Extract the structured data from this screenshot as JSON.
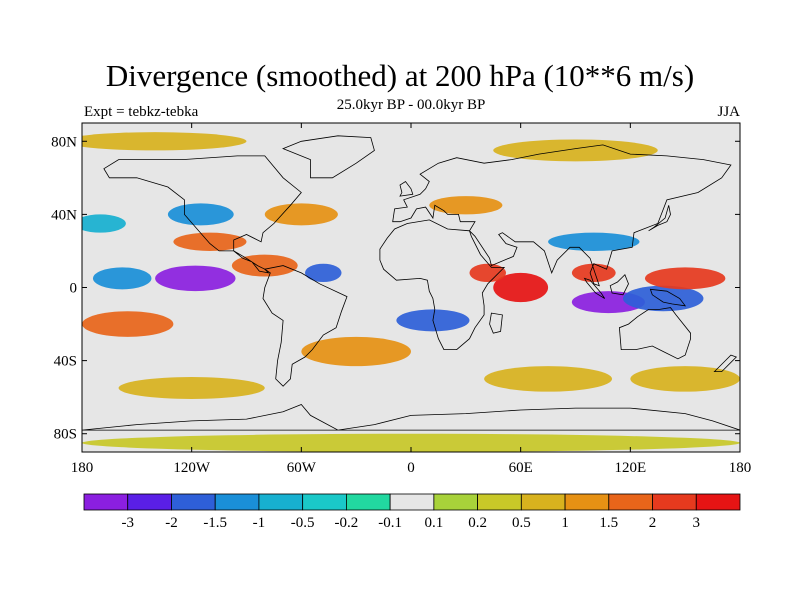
{
  "header": {
    "title": "Divergence (smoothed) at 200 hPa (10**6 m/s)",
    "subtitle": "25.0kyr BP - 00.0kyr BP",
    "left_label": "Expt = tebkz-tebka",
    "right_label": "JJA"
  },
  "chart_data": {
    "type": "heatmap",
    "title": "Divergence (smoothed) at 200 hPa (10**6 m/s)",
    "variable": "Divergence difference (smoothed), 200 hPa",
    "units": "10**6 m/s",
    "season": "JJA",
    "projection": "cylindrical equidistant, 180 to 180",
    "xlim": [
      -180,
      180
    ],
    "ylim": [
      -90,
      90
    ],
    "x_ticks": [
      {
        "value": -180,
        "label": "180"
      },
      {
        "value": -120,
        "label": "120W"
      },
      {
        "value": -60,
        "label": "60W"
      },
      {
        "value": 0,
        "label": "0"
      },
      {
        "value": 60,
        "label": "60E"
      },
      {
        "value": 120,
        "label": "120E"
      },
      {
        "value": 180,
        "label": "180"
      }
    ],
    "y_ticks": [
      {
        "value": 80,
        "label": "80N"
      },
      {
        "value": 40,
        "label": "40N"
      },
      {
        "value": 0,
        "label": "0"
      },
      {
        "value": -40,
        "label": "40S"
      },
      {
        "value": -80,
        "label": "80S"
      }
    ],
    "colorbar": {
      "colors": [
        "#8b1fe0",
        "#5a1fe6",
        "#2e5fd8",
        "#1a8fd8",
        "#17b0d0",
        "#1ac8c8",
        "#22d8a0",
        "#e6e6e6",
        "#a8d23a",
        "#c8c828",
        "#d8b21e",
        "#e69114",
        "#e8651a",
        "#e63a1e",
        "#e61414"
      ],
      "labels": [
        "-3",
        "-2",
        "-1.5",
        "-1",
        "-0.5",
        "-0.2",
        "-0.1",
        "0.1",
        "0.2",
        "0.5",
        "1",
        "1.5",
        "2",
        "3"
      ]
    },
    "features": [
      {
        "type": "ellipse",
        "lon": -118,
        "lat": 5,
        "rlon": 22,
        "rlat": 7,
        "value": -3.2
      },
      {
        "type": "ellipse",
        "lon": -158,
        "lat": 5,
        "rlon": 16,
        "rlat": 6,
        "value": -1.2
      },
      {
        "type": "ellipse",
        "lon": 108,
        "lat": -8,
        "rlon": 20,
        "rlat": 6,
        "value": -3.2
      },
      {
        "type": "ellipse",
        "lon": 138,
        "lat": -6,
        "rlon": 22,
        "rlat": 7,
        "value": -2.0
      },
      {
        "type": "ellipse",
        "lon": -48,
        "lat": 8,
        "rlon": 10,
        "rlat": 5,
        "value": -2.0
      },
      {
        "type": "ellipse",
        "lon": 12,
        "lat": -18,
        "rlon": 20,
        "rlat": 6,
        "value": -1.6
      },
      {
        "type": "ellipse",
        "lon": -115,
        "lat": 40,
        "rlon": 18,
        "rlat": 6,
        "value": -1.5
      },
      {
        "type": "ellipse",
        "lon": -170,
        "lat": 35,
        "rlon": 14,
        "rlat": 5,
        "value": -0.8
      },
      {
        "type": "ellipse",
        "lon": 100,
        "lat": 25,
        "rlon": 25,
        "rlat": 5,
        "value": -1.2
      },
      {
        "type": "ellipse",
        "lon": 60,
        "lat": 0,
        "rlon": 15,
        "rlat": 8,
        "value": 3.2
      },
      {
        "type": "ellipse",
        "lon": 42,
        "lat": 8,
        "rlon": 10,
        "rlat": 5,
        "value": 2.5
      },
      {
        "type": "ellipse",
        "lon": 100,
        "lat": 8,
        "rlon": 12,
        "rlat": 5,
        "value": 2.5
      },
      {
        "type": "ellipse",
        "lon": 150,
        "lat": 5,
        "rlon": 22,
        "rlat": 6,
        "value": 2.0
      },
      {
        "type": "ellipse",
        "lon": -80,
        "lat": 12,
        "rlon": 18,
        "rlat": 6,
        "value": 1.8
      },
      {
        "type": "ellipse",
        "lon": -155,
        "lat": -20,
        "rlon": 25,
        "rlat": 7,
        "value": 1.6
      },
      {
        "type": "ellipse",
        "lon": -110,
        "lat": 25,
        "rlon": 20,
        "rlat": 5,
        "value": 1.5
      },
      {
        "type": "ellipse",
        "lon": -60,
        "lat": 40,
        "rlon": 20,
        "rlat": 6,
        "value": 1.2
      },
      {
        "type": "ellipse",
        "lon": 30,
        "lat": 45,
        "rlon": 20,
        "rlat": 5,
        "value": 1.0
      },
      {
        "type": "ellipse",
        "lon": -30,
        "lat": -35,
        "rlon": 30,
        "rlat": 8,
        "value": 1.2
      },
      {
        "type": "ellipse",
        "lon": 75,
        "lat": -50,
        "rlon": 35,
        "rlat": 7,
        "value": 0.8
      },
      {
        "type": "ellipse",
        "lon": 150,
        "lat": -50,
        "rlon": 30,
        "rlat": 7,
        "value": 0.8
      },
      {
        "type": "ellipse",
        "lon": -120,
        "lat": -55,
        "rlon": 40,
        "rlat": 6,
        "value": 0.6
      },
      {
        "type": "ellipse",
        "lon": 0,
        "lat": -85,
        "rlon": 180,
        "rlat": 5,
        "value": 0.4
      },
      {
        "type": "ellipse",
        "lon": -140,
        "lat": 80,
        "rlon": 50,
        "rlat": 5,
        "value": 0.8
      },
      {
        "type": "ellipse",
        "lon": 90,
        "lat": 75,
        "rlon": 45,
        "rlat": 6,
        "value": 0.6
      }
    ],
    "land_outlines": [
      {
        "name": "North America",
        "points": [
          [
            -168,
            65
          ],
          [
            -160,
            70
          ],
          [
            -140,
            70
          ],
          [
            -125,
            70
          ],
          [
            -95,
            72
          ],
          [
            -80,
            72
          ],
          [
            -70,
            60
          ],
          [
            -60,
            52
          ],
          [
            -66,
            45
          ],
          [
            -75,
            35
          ],
          [
            -81,
            30
          ],
          [
            -82,
            25
          ],
          [
            -90,
            29
          ],
          [
            -97,
            26
          ],
          [
            -97,
            20
          ],
          [
            -105,
            20
          ],
          [
            -110,
            24
          ],
          [
            -117,
            32
          ],
          [
            -124,
            40
          ],
          [
            -124,
            48
          ],
          [
            -133,
            55
          ],
          [
            -150,
            60
          ],
          [
            -165,
            60
          ]
        ]
      },
      {
        "name": "Central America",
        "points": [
          [
            -97,
            20
          ],
          [
            -92,
            16
          ],
          [
            -87,
            14
          ],
          [
            -83,
            9
          ],
          [
            -78,
            8
          ],
          [
            -80,
            10
          ],
          [
            -84,
            12
          ],
          [
            -90,
            16
          ],
          [
            -97,
            20
          ]
        ]
      },
      {
        "name": "Greenland",
        "points": [
          [
            -55,
            60
          ],
          [
            -43,
            60
          ],
          [
            -30,
            68
          ],
          [
            -20,
            75
          ],
          [
            -22,
            82
          ],
          [
            -40,
            83
          ],
          [
            -60,
            80
          ],
          [
            -70,
            76
          ],
          [
            -55,
            70
          ]
        ]
      },
      {
        "name": "South America",
        "points": [
          [
            -80,
            10
          ],
          [
            -70,
            12
          ],
          [
            -60,
            8
          ],
          [
            -50,
            2
          ],
          [
            -35,
            -5
          ],
          [
            -38,
            -13
          ],
          [
            -41,
            -22
          ],
          [
            -48,
            -26
          ],
          [
            -54,
            -34
          ],
          [
            -58,
            -38
          ],
          [
            -65,
            -42
          ],
          [
            -66,
            -50
          ],
          [
            -70,
            -54
          ],
          [
            -74,
            -50
          ],
          [
            -73,
            -40
          ],
          [
            -71,
            -30
          ],
          [
            -70,
            -18
          ],
          [
            -76,
            -14
          ],
          [
            -81,
            -6
          ],
          [
            -80,
            0
          ],
          [
            -77,
            8
          ]
        ]
      },
      {
        "name": "Europe-Asia",
        "points": [
          [
            -10,
            36
          ],
          [
            -9,
            43
          ],
          [
            -2,
            44
          ],
          [
            -4,
            48
          ],
          [
            5,
            51
          ],
          [
            8,
            54
          ],
          [
            10,
            58
          ],
          [
            5,
            62
          ],
          [
            15,
            68
          ],
          [
            25,
            71
          ],
          [
            40,
            68
          ],
          [
            55,
            70
          ],
          [
            70,
            73
          ],
          [
            90,
            76
          ],
          [
            105,
            78
          ],
          [
            120,
            73
          ],
          [
            140,
            72
          ],
          [
            160,
            70
          ],
          [
            175,
            67
          ],
          [
            170,
            60
          ],
          [
            157,
            52
          ],
          [
            140,
            48
          ],
          [
            135,
            35
          ],
          [
            122,
            30
          ],
          [
            121,
            22
          ],
          [
            110,
            20
          ],
          [
            107,
            10
          ],
          [
            100,
            13
          ],
          [
            98,
            8
          ],
          [
            100,
            2
          ],
          [
            103,
            1
          ],
          [
            98,
            16
          ],
          [
            92,
            22
          ],
          [
            87,
            22
          ],
          [
            80,
            15
          ],
          [
            77,
            8
          ],
          [
            73,
            20
          ],
          [
            67,
            25
          ],
          [
            57,
            25
          ],
          [
            50,
            30
          ],
          [
            48,
            29
          ],
          [
            52,
            24
          ],
          [
            58,
            22
          ],
          [
            56,
            17
          ],
          [
            44,
            12
          ],
          [
            43,
            16
          ],
          [
            35,
            28
          ],
          [
            32,
            31
          ],
          [
            35,
            36
          ],
          [
            27,
            36
          ],
          [
            26,
            40
          ],
          [
            20,
            40
          ],
          [
            18,
            42
          ],
          [
            13,
            45
          ],
          [
            12,
            38
          ],
          [
            8,
            44
          ],
          [
            3,
            43
          ],
          [
            0,
            38
          ],
          [
            -6,
            36
          ]
        ]
      },
      {
        "name": "Africa",
        "points": [
          [
            -17,
            21
          ],
          [
            -17,
            15
          ],
          [
            -15,
            10
          ],
          [
            -8,
            4
          ],
          [
            5,
            5
          ],
          [
            9,
            4
          ],
          [
            10,
            -2
          ],
          [
            12,
            -6
          ],
          [
            13,
            -12
          ],
          [
            12,
            -18
          ],
          [
            15,
            -28
          ],
          [
            18,
            -34
          ],
          [
            25,
            -34
          ],
          [
            32,
            -28
          ],
          [
            35,
            -22
          ],
          [
            40,
            -15
          ],
          [
            40,
            -10
          ],
          [
            39,
            -3
          ],
          [
            42,
            2
          ],
          [
            51,
            11
          ],
          [
            44,
            11
          ],
          [
            38,
            18
          ],
          [
            33,
            28
          ],
          [
            32,
            31
          ],
          [
            20,
            32
          ],
          [
            10,
            37
          ],
          [
            -2,
            35
          ],
          [
            -9,
            32
          ],
          [
            -13,
            27
          ]
        ]
      },
      {
        "name": "Madagascar",
        "points": [
          [
            44,
            -14
          ],
          [
            50,
            -15
          ],
          [
            49,
            -24
          ],
          [
            45,
            -25
          ],
          [
            43,
            -20
          ]
        ]
      },
      {
        "name": "Australia",
        "points": [
          [
            114,
            -22
          ],
          [
            115,
            -34
          ],
          [
            123,
            -34
          ],
          [
            132,
            -32
          ],
          [
            138,
            -35
          ],
          [
            146,
            -39
          ],
          [
            150,
            -37
          ],
          [
            153,
            -28
          ],
          [
            153,
            -25
          ],
          [
            145,
            -15
          ],
          [
            142,
            -11
          ],
          [
            136,
            -12
          ],
          [
            130,
            -12
          ],
          [
            124,
            -16
          ],
          [
            119,
            -20
          ]
        ]
      },
      {
        "name": "Borneo",
        "points": [
          [
            109,
            1
          ],
          [
            110,
            -3
          ],
          [
            116,
            -4
          ],
          [
            119,
            2
          ],
          [
            117,
            7
          ],
          [
            113,
            3
          ]
        ]
      },
      {
        "name": "Sumatra",
        "points": [
          [
            95,
            5
          ],
          [
            98,
            4
          ],
          [
            104,
            -3
          ],
          [
            106,
            -6
          ],
          [
            101,
            -3
          ],
          [
            96,
            3
          ]
        ]
      },
      {
        "name": "New Guinea",
        "points": [
          [
            131,
            -1
          ],
          [
            140,
            -2
          ],
          [
            147,
            -6
          ],
          [
            150,
            -10
          ],
          [
            143,
            -9
          ],
          [
            138,
            -8
          ],
          [
            132,
            -4
          ]
        ]
      },
      {
        "name": "Japan",
        "points": [
          [
            130,
            31
          ],
          [
            135,
            34
          ],
          [
            140,
            36
          ],
          [
            142,
            40
          ],
          [
            141,
            45
          ],
          [
            139,
            38
          ],
          [
            133,
            33
          ]
        ]
      },
      {
        "name": "UK",
        "points": [
          [
            -6,
            50
          ],
          [
            1,
            51
          ],
          [
            0,
            54
          ],
          [
            -3,
            58
          ],
          [
            -6,
            56
          ],
          [
            -5,
            52
          ]
        ]
      },
      {
        "name": "New Zealand",
        "points": [
          [
            166,
            -46
          ],
          [
            172,
            -40
          ],
          [
            175,
            -37
          ],
          [
            178,
            -38
          ],
          [
            174,
            -42
          ],
          [
            170,
            -46
          ]
        ]
      },
      {
        "name": "Antarctica",
        "points": [
          [
            -180,
            -78
          ],
          [
            -150,
            -75
          ],
          [
            -120,
            -73
          ],
          [
            -90,
            -72
          ],
          [
            -70,
            -68
          ],
          [
            -60,
            -64
          ],
          [
            -55,
            -70
          ],
          [
            -40,
            -78
          ],
          [
            -20,
            -75
          ],
          [
            0,
            -70
          ],
          [
            30,
            -69
          ],
          [
            60,
            -67
          ],
          [
            90,
            -66
          ],
          [
            120,
            -66
          ],
          [
            150,
            -69
          ],
          [
            165,
            -73
          ],
          [
            180,
            -78
          ]
        ]
      }
    ]
  }
}
